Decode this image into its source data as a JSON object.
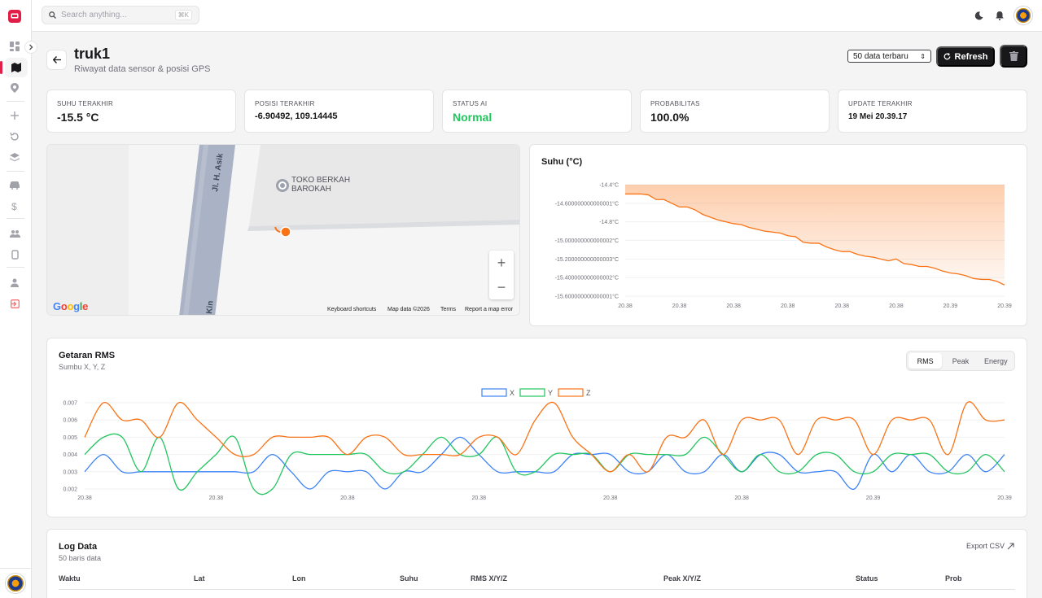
{
  "search": {
    "placeholder": "Search anything...",
    "shortcut": "⌘K"
  },
  "header": {
    "title": "truk1",
    "subtitle": "Riwayat data sensor & posisi GPS",
    "range_select": "50 data terbaru",
    "refresh_label": "Refresh"
  },
  "stats": [
    {
      "label": "SUHU TERAKHIR",
      "value": "-15.5 °C"
    },
    {
      "label": "POSISI TERAKHIR",
      "value": "-6.90492, 109.14445"
    },
    {
      "label": "STATUS AI",
      "value": "Normal"
    },
    {
      "label": "PROBABILITAS",
      "value": "100.0%"
    },
    {
      "label": "UPDATE TERAKHIR",
      "value": "19 Mei 20.39.17"
    }
  ],
  "map": {
    "street_top": "Jl. H. Asik",
    "street_bottom": "Kin",
    "place_line1": "TOKO BERKAH",
    "place_line2": "BAROKAH",
    "google": "Google",
    "footer": [
      "Keyboard shortcuts",
      "Map data ©2026",
      "Terms",
      "Report a map error"
    ]
  },
  "colors": {
    "x": "#3b82f6",
    "y": "#22c55e",
    "z": "#f97316",
    "accent": "#e11d48",
    "status": "#22c55e"
  },
  "temp_chart": {
    "title": "Suhu (°C)",
    "chart_data": {
      "type": "area",
      "y_ticks": [
        "-14.4°C",
        "-14.600000000000001°C",
        "-14.8°C",
        "-15.000000000000002°C",
        "-15.200000000000003°C",
        "-15.400000000000002°C",
        "-15.600000000000001°C"
      ],
      "x_ticks": [
        "20.38",
        "20.38",
        "20.38",
        "20.38",
        "20.38",
        "20.38",
        "20.39",
        "20.39"
      ],
      "ylim": [
        -15.6,
        -14.4
      ],
      "values": [
        -14.5,
        -14.5,
        -14.5,
        -14.51,
        -14.56,
        -14.56,
        -14.6,
        -14.64,
        -14.64,
        -14.67,
        -14.72,
        -14.75,
        -14.78,
        -14.8,
        -14.82,
        -14.83,
        -14.86,
        -14.88,
        -14.9,
        -14.91,
        -14.92,
        -14.95,
        -14.96,
        -15.02,
        -15.03,
        -15.03,
        -15.07,
        -15.1,
        -15.12,
        -15.12,
        -15.15,
        -15.17,
        -15.18,
        -15.2,
        -15.22,
        -15.2,
        -15.25,
        -15.26,
        -15.28,
        -15.28,
        -15.3,
        -15.33,
        -15.35,
        -15.36,
        -15.38,
        -15.41,
        -15.42,
        -15.42,
        -15.44,
        -15.48
      ]
    }
  },
  "vib_chart": {
    "title": "Getaran RMS",
    "subtitle": "Sumbu X, Y, Z",
    "tabs": [
      "RMS",
      "Peak",
      "Energy"
    ],
    "chart_data": {
      "type": "line",
      "y_ticks": [
        "0.007",
        "0.006",
        "0.005",
        "0.004",
        "0.003",
        "0.002"
      ],
      "x_ticks": [
        "20.38",
        "20.38",
        "20.38",
        "20.38",
        "20.38",
        "20.38",
        "20.39",
        "20.39"
      ],
      "ylim": [
        0.002,
        0.007
      ],
      "series": [
        {
          "name": "X",
          "values": [
            0.003,
            0.004,
            0.003,
            0.003,
            0.003,
            0.003,
            0.003,
            0.003,
            0.003,
            0.003,
            0.004,
            0.003,
            0.002,
            0.003,
            0.003,
            0.003,
            0.002,
            0.003,
            0.003,
            0.004,
            0.005,
            0.004,
            0.003,
            0.003,
            0.003,
            0.003,
            0.004,
            0.004,
            0.004,
            0.003,
            0.003,
            0.004,
            0.003,
            0.003,
            0.004,
            0.003,
            0.004,
            0.004,
            0.003,
            0.003,
            0.003,
            0.002,
            0.004,
            0.003,
            0.004,
            0.003,
            0.003,
            0.004,
            0.003,
            0.004
          ]
        },
        {
          "name": "Y",
          "values": [
            0.004,
            0.005,
            0.005,
            0.003,
            0.005,
            0.002,
            0.003,
            0.004,
            0.005,
            0.002,
            0.002,
            0.004,
            0.004,
            0.004,
            0.004,
            0.004,
            0.003,
            0.003,
            0.004,
            0.005,
            0.004,
            0.004,
            0.005,
            0.003,
            0.003,
            0.004,
            0.004,
            0.004,
            0.003,
            0.004,
            0.004,
            0.004,
            0.004,
            0.005,
            0.004,
            0.003,
            0.004,
            0.003,
            0.003,
            0.004,
            0.004,
            0.003,
            0.003,
            0.004,
            0.004,
            0.004,
            0.003,
            0.003,
            0.004,
            0.003
          ]
        },
        {
          "name": "Z",
          "values": [
            0.005,
            0.007,
            0.006,
            0.006,
            0.005,
            0.007,
            0.006,
            0.005,
            0.004,
            0.004,
            0.005,
            0.005,
            0.005,
            0.005,
            0.004,
            0.005,
            0.005,
            0.004,
            0.004,
            0.004,
            0.004,
            0.005,
            0.005,
            0.004,
            0.006,
            0.007,
            0.005,
            0.004,
            0.003,
            0.004,
            0.003,
            0.005,
            0.005,
            0.006,
            0.004,
            0.006,
            0.006,
            0.006,
            0.004,
            0.006,
            0.006,
            0.006,
            0.004,
            0.006,
            0.006,
            0.006,
            0.004,
            0.007,
            0.006,
            0.006
          ]
        }
      ]
    }
  },
  "log": {
    "title": "Log Data",
    "subtitle": "50 baris data",
    "export_label": "Export CSV",
    "columns": [
      "Waktu",
      "Lat",
      "Lon",
      "Suhu",
      "RMS X/Y/Z",
      "Peak X/Y/Z",
      "Status",
      "Prob"
    ]
  }
}
